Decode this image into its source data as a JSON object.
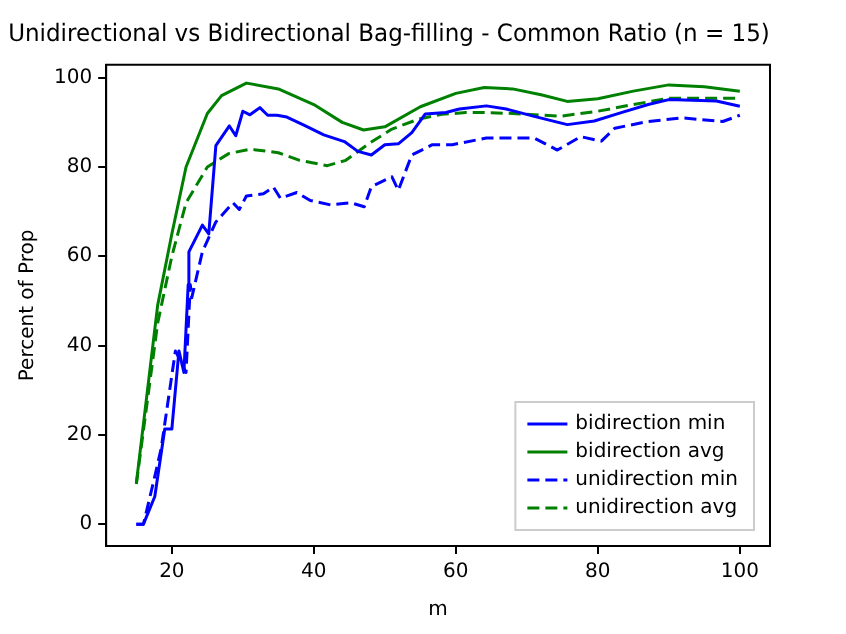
{
  "chart_data": {
    "type": "line",
    "title": "Unidirectional vs Bidirectional Bag-filling - Common Ratio (n = 15)",
    "xlabel": "m",
    "ylabel": "Percent of Prop",
    "xlim": [
      10.75,
      104.25
    ],
    "xticks": [
      20,
      40,
      60,
      80,
      100
    ],
    "ylim": [
      -4.9,
      102.9
    ],
    "yticks": [
      0,
      20,
      40,
      60,
      80,
      100
    ],
    "grid": false,
    "legend": "bottom right",
    "marker": "none",
    "series": [
      {
        "name": "bidirection min",
        "color": "#0000ff",
        "line_style": "solid",
        "x": [
          15,
          16,
          17.6,
          19,
          20,
          21,
          21.7,
          22.3,
          22.4,
          24.3,
          25.2,
          26.2,
          28.1,
          29,
          30,
          31,
          32.4,
          33.5,
          34.8,
          36.2,
          38.6,
          41.4,
          44.3,
          46.2,
          48.1,
          50,
          51.9,
          53.8,
          55.7,
          58.6,
          60.5,
          64.3,
          67.1,
          70.9,
          75.7,
          79.5,
          83.3,
          87.1,
          90,
          96.7,
          100
        ],
        "values": [
          0,
          0,
          6.2,
          21.3,
          21.3,
          38.8,
          34,
          53.6,
          61,
          67,
          65,
          84.8,
          89.2,
          87,
          92.5,
          91.7,
          93.3,
          91.6,
          91.6,
          91.2,
          89.4,
          87.2,
          85.7,
          83.5,
          82.7,
          85,
          85.2,
          87.7,
          91.9,
          92.2,
          93,
          93.7,
          93,
          91.4,
          89.5,
          90.3,
          92.2,
          94,
          95.1,
          94.8,
          93.6
        ]
      },
      {
        "name": "bidirection avg",
        "color": "#008000",
        "line_style": "solid",
        "x": [
          15,
          18,
          20,
          22,
          25,
          27,
          30.5,
          35,
          40,
          44,
          47,
          50,
          55,
          60,
          64,
          68,
          72,
          75.7,
          80,
          85,
          90,
          95,
          100
        ],
        "values": [
          9.2,
          49,
          65,
          80,
          92,
          96,
          98.8,
          97.5,
          94,
          90,
          88.3,
          89,
          93.5,
          96.5,
          97.8,
          97.5,
          96.2,
          94.7,
          95.3,
          97,
          98.4,
          98,
          97
        ]
      },
      {
        "name": "unidirection min",
        "color": "#0000ff",
        "line_style": "dashed",
        "x": [
          15,
          16,
          17.6,
          18.5,
          20.5,
          22,
          22.6,
          22.8,
          24.3,
          26.2,
          28.6,
          29.5,
          30.5,
          32.9,
          34.3,
          35.3,
          37.6,
          39.5,
          42.4,
          45.2,
          47.1,
          48.1,
          51,
          51.9,
          53.8,
          56.7,
          59.5,
          64.3,
          67,
          71,
          74.3,
          77.6,
          80.5,
          82.4,
          87.1,
          91.9,
          97.6,
          100
        ],
        "values": [
          0,
          0,
          10.7,
          17,
          38.8,
          34,
          53.6,
          50.7,
          61,
          67.7,
          72,
          70.5,
          73.5,
          74,
          75.5,
          73,
          74.3,
          72.5,
          71.5,
          72,
          71.1,
          75.6,
          77.8,
          74.8,
          82.7,
          85,
          85,
          86.5,
          86.5,
          86.5,
          83.8,
          86.8,
          85.8,
          88.7,
          90.2,
          91,
          90.2,
          91.6
        ]
      },
      {
        "name": "unidirection avg",
        "color": "#008000",
        "line_style": "dashed",
        "x": [
          15,
          18,
          20,
          22,
          25,
          28,
          31,
          35,
          38,
          41.9,
          44.5,
          48,
          51,
          54.7,
          58,
          61.4,
          64,
          68,
          74.8,
          80,
          85,
          90,
          95,
          100
        ],
        "values": [
          9,
          45,
          60,
          72,
          80,
          83,
          84,
          83.2,
          81.5,
          80.3,
          81.5,
          85.5,
          88.5,
          90.7,
          91.8,
          92.2,
          92.2,
          92,
          91.4,
          92.5,
          94,
          95.4,
          95.4,
          95.4
        ]
      }
    ]
  }
}
